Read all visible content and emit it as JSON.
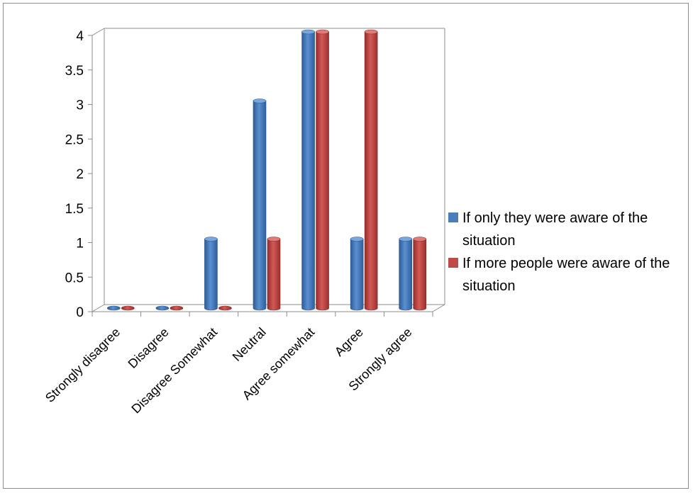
{
  "chart_data": {
    "type": "bar",
    "categories": [
      "Strongly disagree",
      "Disagree",
      "Disagree Somewhat",
      "Neutral",
      "Agree somewhat",
      "Agree",
      "Strongly agree"
    ],
    "series": [
      {
        "name": "If only they were  aware of the situation",
        "values": [
          0,
          0,
          1,
          3,
          4,
          1,
          1
        ],
        "color": "#4a7ebb"
      },
      {
        "name": "If more people were aware of the situation",
        "values": [
          0,
          0,
          0,
          1,
          4,
          4,
          1
        ],
        "color": "#be4b48"
      }
    ],
    "yticks": [
      "0",
      "0.5",
      "1",
      "1.5",
      "2",
      "2.5",
      "3",
      "3.5",
      "4"
    ],
    "ylim": [
      0,
      4
    ],
    "xlabel": "",
    "ylabel": "",
    "grid": false,
    "legend_position": "right"
  }
}
